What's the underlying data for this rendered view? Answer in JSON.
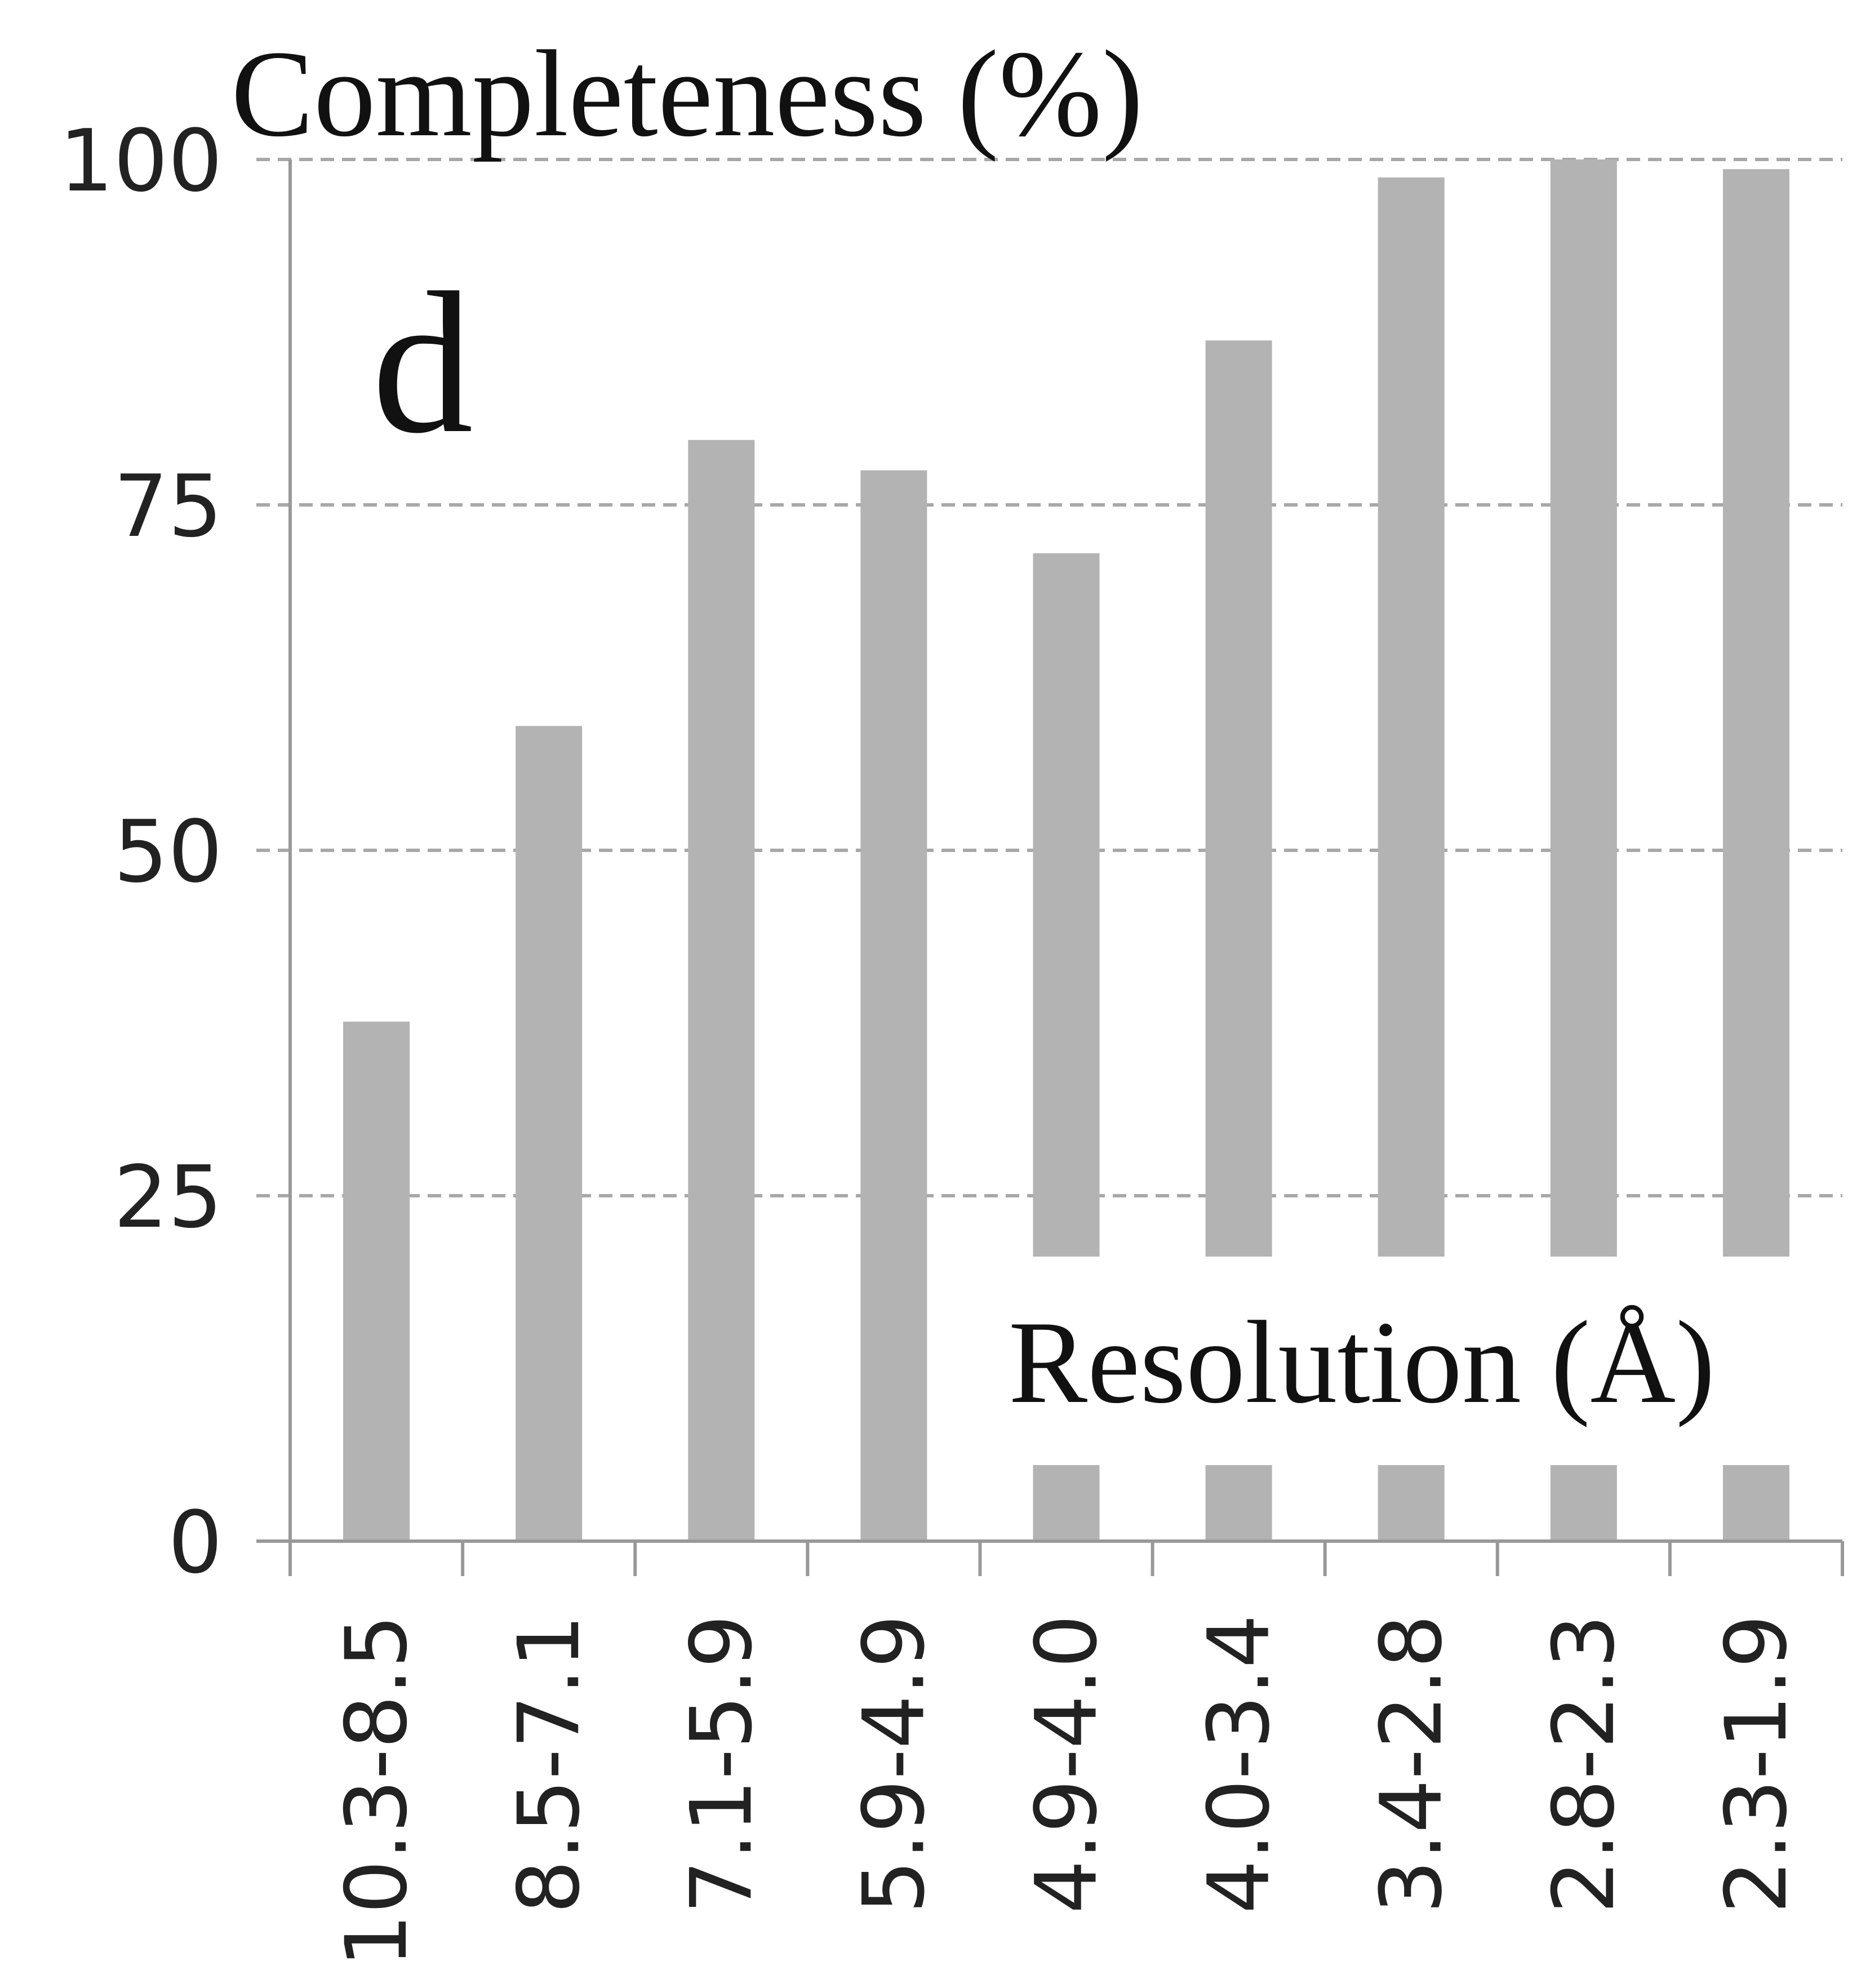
{
  "chart_data": {
    "type": "bar",
    "panel_label": "d",
    "title": "Completeness (%)",
    "xlabel": "Resolution (Å)",
    "ylabel": "",
    "categories": [
      "10.3-8.5",
      "8.5-7.1",
      "7.1-5.9",
      "5.9-4.9",
      "4.9-4.0",
      "4.0-3.4",
      "3.4-2.8",
      "2.8-2.3",
      "2.3-1.9"
    ],
    "values": [
      37.6,
      59.0,
      79.7,
      77.5,
      71.5,
      86.9,
      98.7,
      100.0,
      99.3
    ],
    "ylim": [
      0,
      100
    ],
    "yticks": [
      0,
      25,
      50,
      75,
      100
    ],
    "ytick_labels": [
      "0",
      "25",
      "50",
      "75",
      "100"
    ],
    "grid": "horizontal dashed",
    "colors": {
      "bar": "#b3b3b3",
      "axis": "#999999",
      "grid": "#a8a8a8",
      "text": "#111111"
    }
  }
}
